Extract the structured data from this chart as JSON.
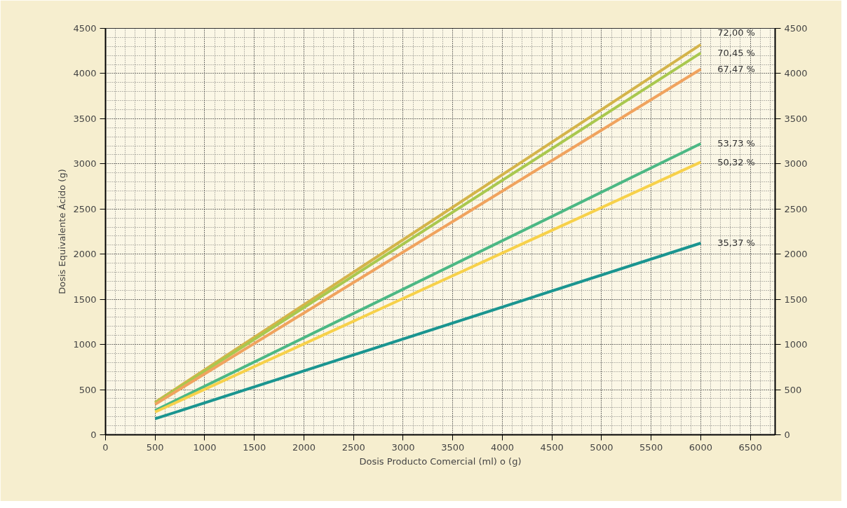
{
  "chart_data": {
    "type": "line",
    "xlabel": "Dosis Producto Comercial (ml) o (g)",
    "ylabel": "Dosis Equivalente Ácido (g)",
    "x": [
      500,
      6000
    ],
    "series": [
      {
        "name": "72,00 %",
        "color": "#d4b44a",
        "values": [
          360,
          4320
        ]
      },
      {
        "name": "70,45 %",
        "color": "#a9c84e",
        "values": [
          352,
          4227
        ]
      },
      {
        "name": "67,47 %",
        "color": "#f0a35e",
        "values": [
          337,
          4048
        ]
      },
      {
        "name": "53,73 %",
        "color": "#4cb884",
        "values": [
          269,
          3224
        ]
      },
      {
        "name": "50,32 %",
        "color": "#f7d14a",
        "values": [
          252,
          3019
        ]
      },
      {
        "name": "35,37 %",
        "color": "#1a9590",
        "values": [
          177,
          2122
        ]
      }
    ],
    "xlim": [
      0,
      6750
    ],
    "xticks": [
      0,
      500,
      1000,
      1500,
      2000,
      2500,
      3000,
      3500,
      4000,
      4500,
      5000,
      5500,
      6000,
      6500
    ],
    "ylim": [
      0,
      4500
    ],
    "yticks": [
      0,
      500,
      1000,
      1500,
      2000,
      2500,
      3000,
      3500,
      4000,
      4500
    ],
    "y2lim": [
      0,
      4500
    ],
    "y2ticks": [
      0,
      500,
      1000,
      1500,
      2000,
      2500,
      3000,
      3500,
      4000,
      4500
    ],
    "grid": true,
    "marker": "none",
    "line_style": "solid"
  }
}
